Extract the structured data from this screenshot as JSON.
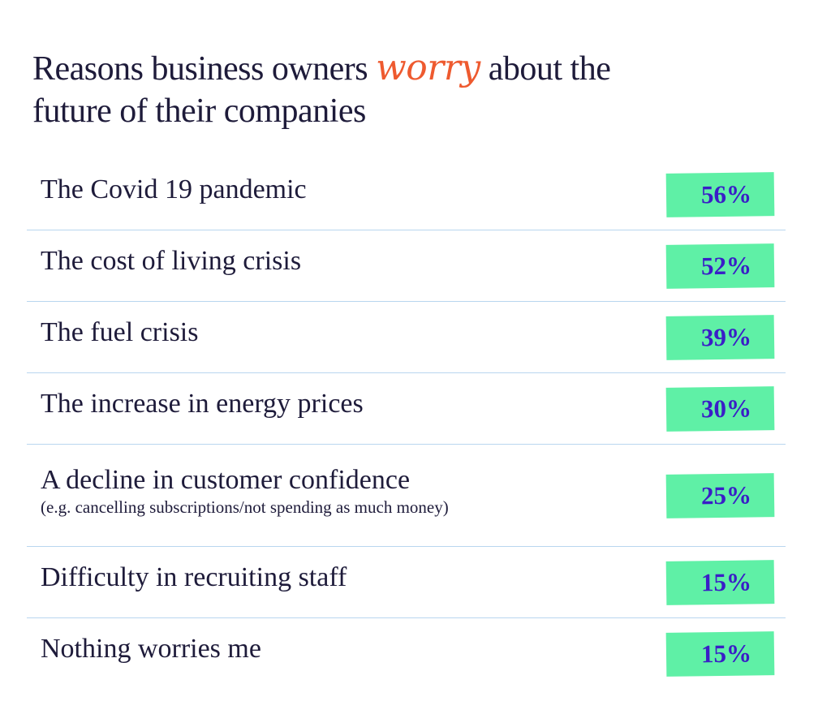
{
  "header": {
    "title_before": "Reasons business owners",
    "title_highlight": "worry",
    "title_after": "about the future of their companies"
  },
  "table": {
    "rows": [
      {
        "label": "The Covid 19 pandemic",
        "value": "56%"
      },
      {
        "label": "The cost of living crisis",
        "value": "52%"
      },
      {
        "label": "The fuel crisis",
        "value": "39%"
      },
      {
        "label": "The increase in energy prices",
        "value": "30%"
      },
      {
        "label": "A decline in customer confidence",
        "note": "(e.g. cancelling subscriptions/not spending as much money)",
        "value": "25%"
      },
      {
        "label": "Difficulty in recruiting staff",
        "value": "15%"
      },
      {
        "label": "Nothing worries me",
        "value": "15%"
      }
    ]
  }
}
